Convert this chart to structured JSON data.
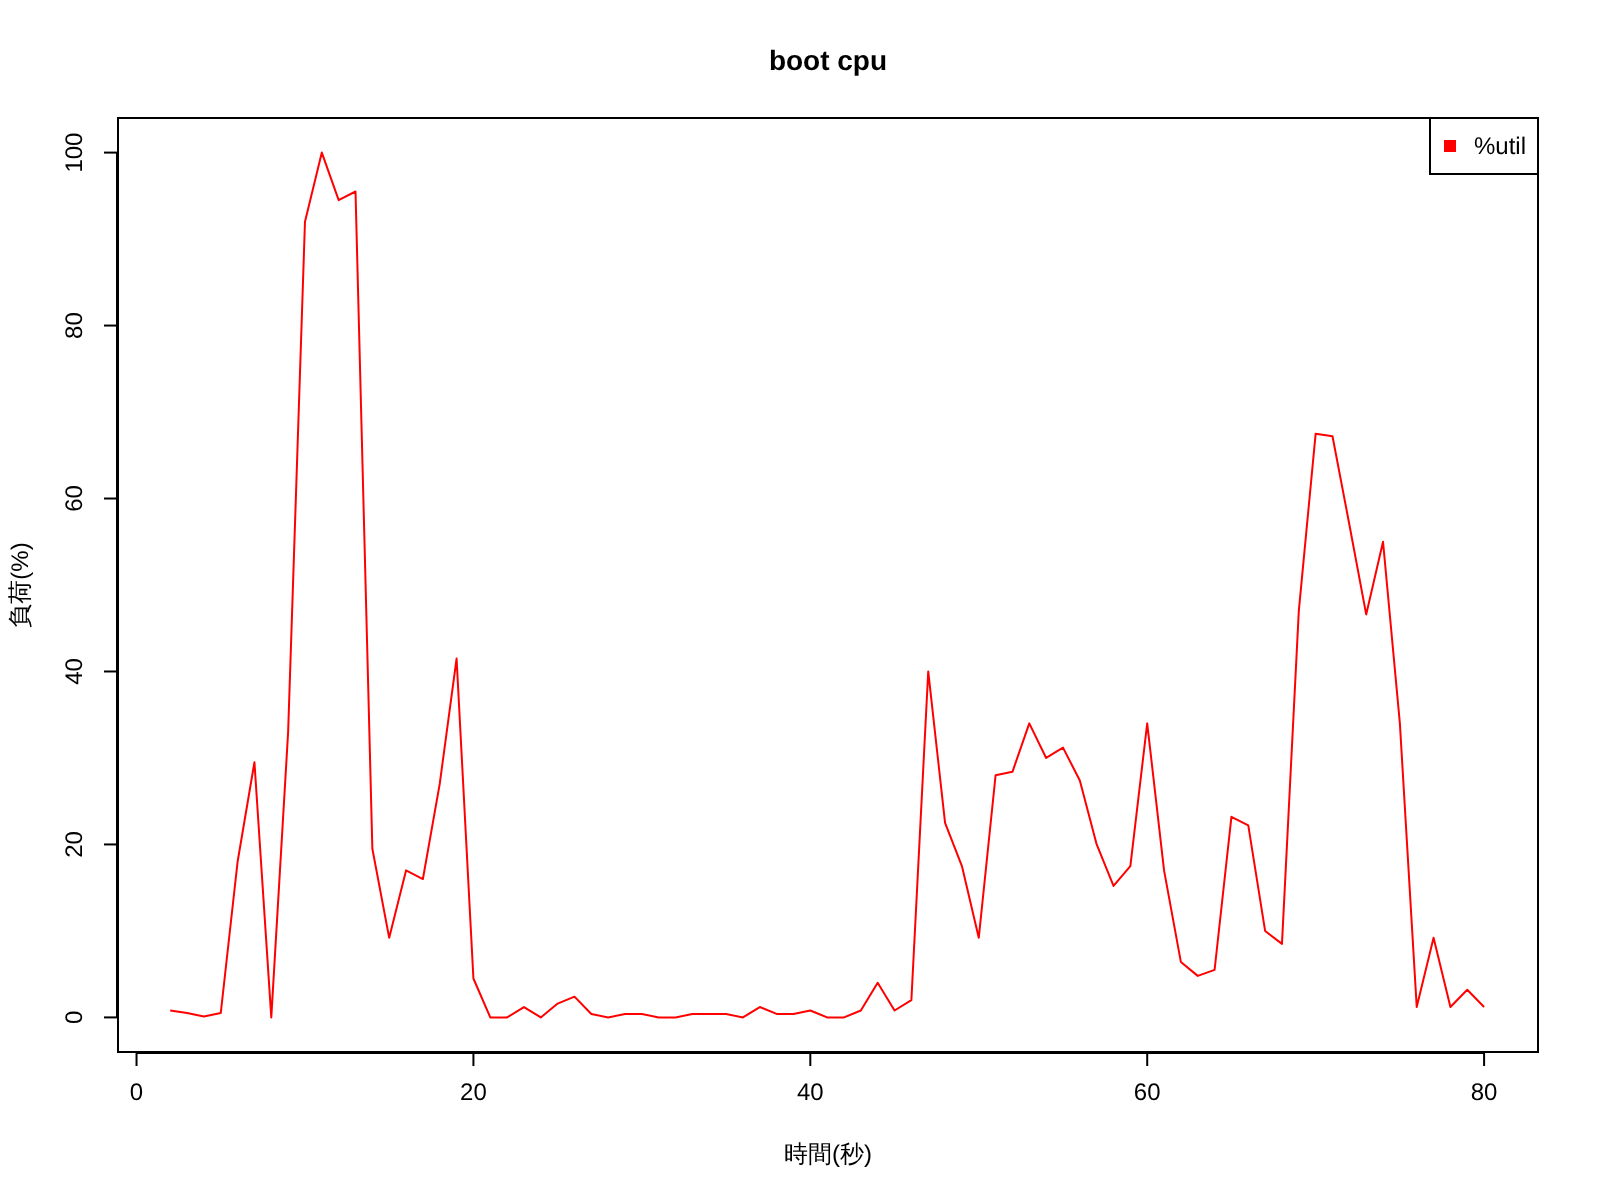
{
  "chart_data": {
    "type": "line",
    "title": "boot cpu",
    "xlabel": "時間(秒)",
    "ylabel": "負荷(%)",
    "x": [
      2,
      3,
      4,
      5,
      6,
      7,
      8,
      9,
      10,
      11,
      12,
      13,
      14,
      15,
      16,
      17,
      18,
      19,
      20,
      21,
      22,
      23,
      24,
      25,
      26,
      27,
      28,
      29,
      30,
      31,
      32,
      33,
      34,
      35,
      36,
      37,
      38,
      39,
      40,
      41,
      42,
      43,
      44,
      45,
      46,
      47,
      48,
      49,
      50,
      51,
      52,
      53,
      54,
      55,
      56,
      57,
      58,
      59,
      60,
      61,
      62,
      63,
      64,
      65,
      66,
      67,
      68,
      69,
      70,
      71,
      72,
      73,
      74,
      75,
      76,
      77,
      78,
      79,
      80
    ],
    "series": [
      {
        "name": "%util",
        "color": "#ff0000",
        "values": [
          0.8,
          0.5,
          0.1,
          0.5,
          18,
          29.5,
          0,
          33,
          92,
          100,
          94.5,
          95.5,
          19.5,
          9.2,
          17,
          16,
          27,
          41.5,
          4.5,
          0,
          0,
          1.2,
          0,
          1.6,
          2.4,
          0.4,
          0,
          0.4,
          0.4,
          0,
          0,
          0.4,
          0.4,
          0.4,
          0,
          1.2,
          0.4,
          0.4,
          0.8,
          0,
          0,
          0.8,
          4,
          0.8,
          2,
          40,
          22.5,
          17.5,
          9.2,
          28,
          28.4,
          34,
          30,
          31.2,
          27.4,
          20,
          15.2,
          17.5,
          34,
          17,
          6.4,
          4.8,
          5.5,
          23.2,
          22.2,
          10,
          8.5,
          47,
          67.5,
          67.2,
          57,
          46.6,
          55,
          34,
          1.2,
          9.2,
          1.2,
          3.2,
          1.2
        ]
      }
    ],
    "xlim": [
      -1.1,
      83.2
    ],
    "ylim": [
      -4,
      104
    ],
    "xticks": [
      0,
      20,
      40,
      60,
      80
    ],
    "yticks": [
      0,
      20,
      40,
      60,
      80,
      100
    ],
    "legend": "top right",
    "line_style": "solid"
  }
}
